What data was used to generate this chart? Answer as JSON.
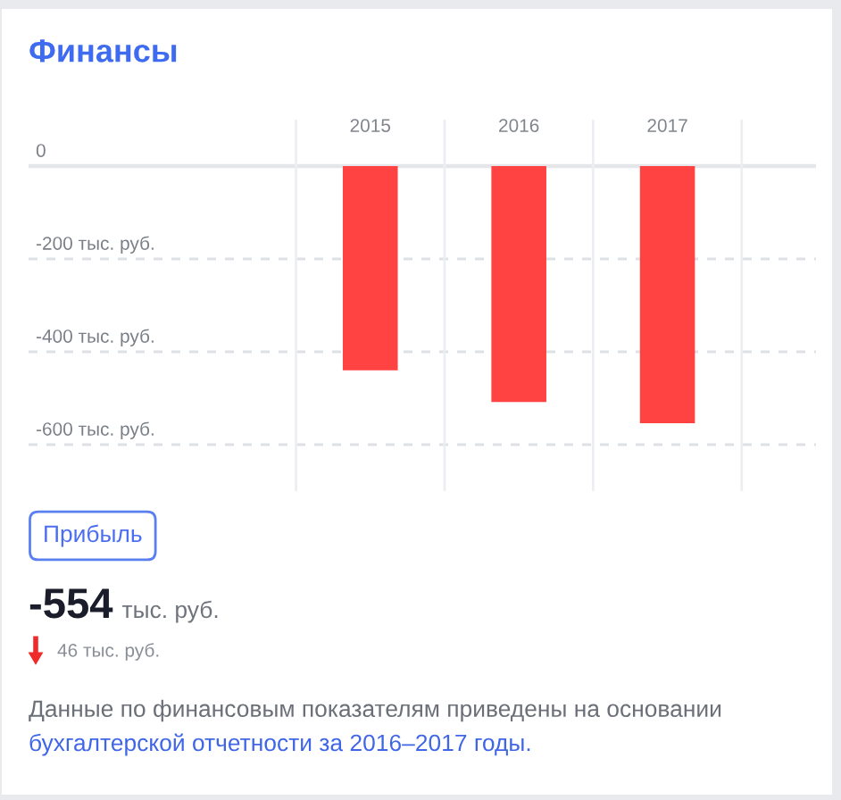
{
  "chart_data": {
    "type": "bar",
    "title": "Финансы",
    "categories": [
      "2015",
      "2016",
      "2017"
    ],
    "values": [
      -440,
      -508,
      -554
    ],
    "color": "#ff4242",
    "ylim": [
      -700,
      100
    ],
    "yticks": [
      0,
      {
        "value": -200,
        "label": "-200 тыс. руб."
      },
      {
        "value": -400,
        "label": "-400 тыс. руб."
      },
      {
        "value": -600,
        "label": "-600 тыс. руб."
      }
    ],
    "grid": true,
    "annotations": [
      "Прибыль",
      "-554",
      "тыс. руб.",
      "46 тыс. руб.",
      "Данные по финансовым показателям приведены на основании",
      "бухгалтерской отчетности за 2016–2017 годы."
    ]
  }
}
